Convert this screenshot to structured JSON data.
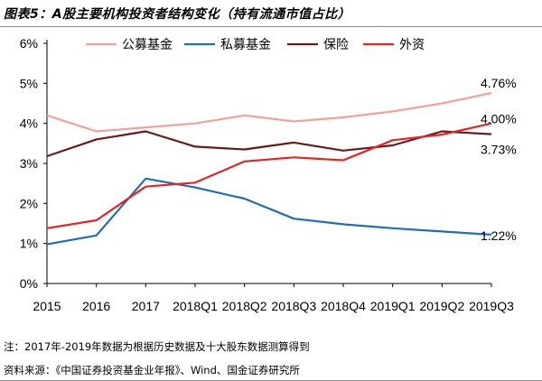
{
  "title": "图表5：A股主要机构投资者结构变化（持有流通市值占比）",
  "chart_data": {
    "type": "line",
    "categories": [
      "2015",
      "2016",
      "2017",
      "2018Q1",
      "2018Q2",
      "2018Q3",
      "2018Q4",
      "2019Q1",
      "2019Q2",
      "2019Q3"
    ],
    "ylim": [
      0,
      6
    ],
    "yticks": [
      "0%",
      "1%",
      "2%",
      "3%",
      "4%",
      "5%",
      "6%"
    ],
    "grid": false,
    "legend_position": "top",
    "series": [
      {
        "name": "公募基金",
        "color": "#f4a09a",
        "values": [
          4.2,
          3.8,
          3.9,
          4.0,
          4.2,
          4.05,
          4.15,
          4.3,
          4.5,
          4.76
        ],
        "end_label": "4.76%"
      },
      {
        "name": "私募基金",
        "color": "#1f6db5",
        "values": [
          0.98,
          1.2,
          2.62,
          2.4,
          2.12,
          1.62,
          1.48,
          1.38,
          1.3,
          1.22
        ],
        "end_label": "1.22%"
      },
      {
        "name": "保险",
        "color": "#6b1a1a",
        "values": [
          3.18,
          3.6,
          3.8,
          3.42,
          3.35,
          3.52,
          3.32,
          3.45,
          3.8,
          3.73
        ],
        "end_label": "3.73%"
      },
      {
        "name": "外资",
        "color": "#e8231f",
        "values": [
          1.38,
          1.58,
          2.42,
          2.52,
          3.05,
          3.15,
          3.08,
          3.58,
          3.72,
          4.0
        ],
        "end_label": "4.00%"
      }
    ]
  },
  "note": "注：2017年-2019年数据为根据历史数据及十大股东数据测算得到",
  "source": "资料来源：《中国证券投资基金业年报》、Wind、国金证券研究所"
}
